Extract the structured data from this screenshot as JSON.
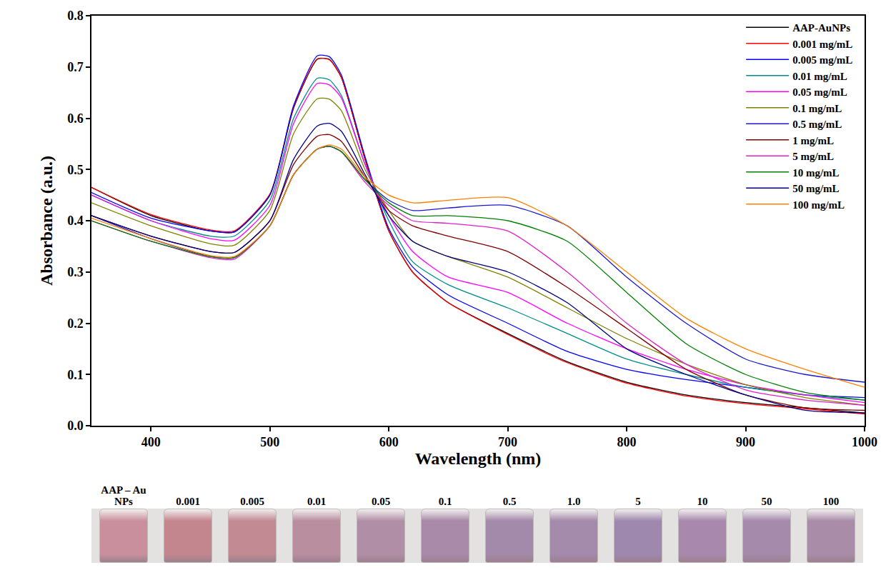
{
  "chart_data": {
    "type": "line",
    "x_label": "Wavelength (nm)",
    "y_label": "Absorbance (a.u.)",
    "x": [
      350,
      400,
      450,
      470,
      500,
      520,
      540,
      550,
      560,
      580,
      600,
      620,
      650,
      700,
      750,
      800,
      850,
      900,
      950,
      1000
    ],
    "series": [
      {
        "name": "AAP-AuNPs",
        "color": "#000000",
        "values": [
          0.465,
          0.41,
          0.38,
          0.378,
          0.45,
          0.62,
          0.715,
          0.715,
          0.68,
          0.52,
          0.38,
          0.3,
          0.24,
          0.18,
          0.125,
          0.085,
          0.06,
          0.045,
          0.035,
          0.025
        ]
      },
      {
        "name": "0.001 mg/mL",
        "color": "#ff0000",
        "values": [
          0.465,
          0.412,
          0.382,
          0.38,
          0.452,
          0.622,
          0.716,
          0.714,
          0.68,
          0.52,
          0.38,
          0.3,
          0.24,
          0.178,
          0.123,
          0.083,
          0.058,
          0.043,
          0.033,
          0.023
        ]
      },
      {
        "name": "0.005 mg/mL",
        "color": "#0000ff",
        "values": [
          0.455,
          0.405,
          0.38,
          0.378,
          0.45,
          0.625,
          0.722,
          0.72,
          0.685,
          0.525,
          0.385,
          0.31,
          0.255,
          0.2,
          0.145,
          0.11,
          0.09,
          0.075,
          0.06,
          0.055
        ]
      },
      {
        "name": "0.01 mg/mL",
        "color": "#008b8b",
        "values": [
          0.45,
          0.4,
          0.37,
          0.37,
          0.44,
          0.6,
          0.678,
          0.675,
          0.645,
          0.51,
          0.4,
          0.32,
          0.275,
          0.23,
          0.18,
          0.13,
          0.1,
          0.075,
          0.06,
          0.05
        ]
      },
      {
        "name": "0.05 mg/mL",
        "color": "#ff00ff",
        "values": [
          0.45,
          0.4,
          0.365,
          0.362,
          0.43,
          0.59,
          0.668,
          0.665,
          0.64,
          0.51,
          0.41,
          0.34,
          0.29,
          0.26,
          0.2,
          0.15,
          0.11,
          0.08,
          0.06,
          0.045
        ]
      },
      {
        "name": "0.1 mg/mL",
        "color": "#808000",
        "values": [
          0.435,
          0.39,
          0.355,
          0.352,
          0.42,
          0.57,
          0.638,
          0.637,
          0.615,
          0.5,
          0.42,
          0.36,
          0.33,
          0.29,
          0.23,
          0.17,
          0.12,
          0.08,
          0.055,
          0.04
        ]
      },
      {
        "name": "0.5 mg/mL",
        "color": "#1a1acc",
        "values": [
          0.41,
          0.365,
          0.33,
          0.328,
          0.39,
          0.49,
          0.54,
          0.545,
          0.535,
          0.48,
          0.44,
          0.42,
          0.425,
          0.43,
          0.39,
          0.29,
          0.2,
          0.13,
          0.1,
          0.085
        ]
      },
      {
        "name": "1 mg/mL",
        "color": "#800000",
        "values": [
          0.41,
          0.37,
          0.34,
          0.338,
          0.4,
          0.51,
          0.565,
          0.568,
          0.555,
          0.485,
          0.42,
          0.39,
          0.37,
          0.34,
          0.27,
          0.19,
          0.11,
          0.06,
          0.035,
          0.03
        ]
      },
      {
        "name": "5 mg/mL",
        "color": "#e020c8",
        "values": [
          0.4,
          0.36,
          0.328,
          0.325,
          0.39,
          0.49,
          0.54,
          0.545,
          0.535,
          0.475,
          0.43,
          0.4,
          0.395,
          0.38,
          0.3,
          0.2,
          0.12,
          0.07,
          0.05,
          0.04
        ]
      },
      {
        "name": "10 mg/mL",
        "color": "#008000",
        "values": [
          0.4,
          0.36,
          0.33,
          0.328,
          0.39,
          0.49,
          0.54,
          0.545,
          0.535,
          0.48,
          0.435,
          0.41,
          0.41,
          0.4,
          0.36,
          0.26,
          0.16,
          0.1,
          0.065,
          0.05
        ]
      },
      {
        "name": "50 mg/mL",
        "color": "#000080",
        "values": [
          0.41,
          0.37,
          0.34,
          0.338,
          0.4,
          0.52,
          0.585,
          0.59,
          0.575,
          0.49,
          0.41,
          0.36,
          0.33,
          0.3,
          0.24,
          0.15,
          0.1,
          0.06,
          0.03,
          0.025
        ]
      },
      {
        "name": "100 mg/mL",
        "color": "#ff8000",
        "values": [
          0.405,
          0.365,
          0.332,
          0.33,
          0.39,
          0.49,
          0.54,
          0.548,
          0.54,
          0.485,
          0.45,
          0.435,
          0.44,
          0.445,
          0.39,
          0.3,
          0.21,
          0.15,
          0.11,
          0.075
        ]
      }
    ],
    "xlim": [
      350,
      1000
    ],
    "xticks": [
      400,
      500,
      600,
      700,
      800,
      900,
      1000
    ],
    "ylim": [
      0,
      0.8
    ],
    "yticks": [
      {
        "value": 0,
        "label": "0.0"
      },
      0.1,
      0.2,
      0.3,
      0.4,
      0.5,
      0.6,
      0.7,
      0.8
    ],
    "grid": false,
    "legend": "top-right"
  },
  "photo_strip": {
    "labels": [
      "AAP – Au NPs",
      "0.001",
      "0.005",
      "0.01",
      "0.05",
      "0.1",
      "0.5",
      "1.0",
      "5",
      "10",
      "50",
      "100"
    ],
    "colors": [
      "#c98f9c",
      "#c4868e",
      "#c28a93",
      "#b98e9f",
      "#b08fa6",
      "#a98aa8",
      "#a48aaa",
      "#a48aab",
      "#9f88ad",
      "#a889ad",
      "#a58aac",
      "#a98ca8"
    ]
  }
}
